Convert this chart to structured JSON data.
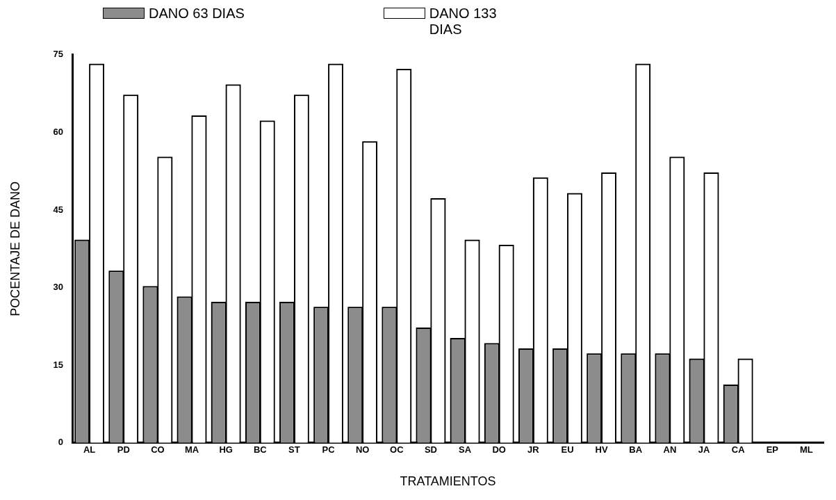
{
  "chart_data": {
    "type": "bar",
    "xlabel": "TRATAMIENTOS",
    "ylabel": "POCENTAJE DE DANO",
    "categories": [
      "AL",
      "PD",
      "CO",
      "MA",
      "HG",
      "BC",
      "ST",
      "PC",
      "NO",
      "OC",
      "SD",
      "SA",
      "DO",
      "JR",
      "EU",
      "HV",
      "BA",
      "AN",
      "JA",
      "CA",
      "EP",
      "ML"
    ],
    "series": [
      {
        "name": "DANO 63 DIAS",
        "color": "#8c8c8c",
        "values": [
          39,
          33,
          30,
          28,
          27,
          27,
          27,
          26,
          26,
          26,
          22,
          20,
          19,
          18,
          18,
          17,
          17,
          17,
          16,
          11,
          0,
          0
        ]
      },
      {
        "name": "DANO 133 DIAS",
        "color": "#ffffff",
        "values": [
          73,
          67,
          55,
          63,
          69,
          62,
          67,
          73,
          58,
          72,
          47,
          39,
          38,
          51,
          48,
          52,
          73,
          55,
          52,
          16,
          0,
          0
        ]
      }
    ],
    "ylim": [
      0,
      75
    ],
    "yticks": [
      0,
      15,
      30,
      45,
      60,
      75
    ],
    "grid": false,
    "legend": "top"
  }
}
